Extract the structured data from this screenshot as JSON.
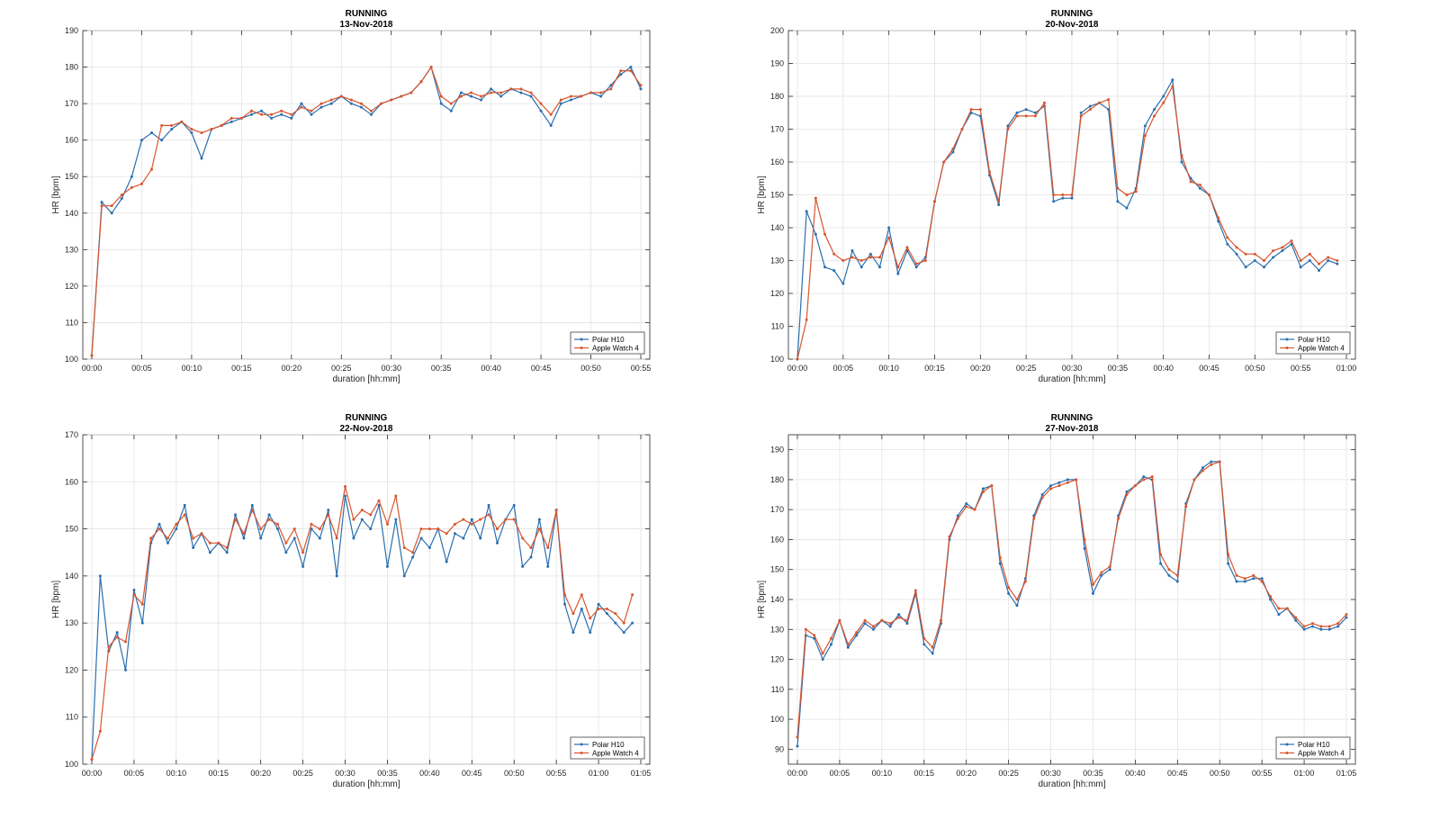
{
  "chart_data": [
    {
      "type": "line",
      "title": "RUNNING",
      "subtitle": "13-Nov-2018",
      "xlabel": "duration [hh:mm]",
      "ylabel": "HR [bpm]",
      "xlim": [
        "00:00",
        "00:55"
      ],
      "ylim": [
        100,
        190
      ],
      "x_ticks": [
        "00:00",
        "00:05",
        "00:10",
        "00:15",
        "00:20",
        "00:25",
        "00:30",
        "00:35",
        "00:40",
        "00:45",
        "00:50",
        "00:55"
      ],
      "y_ticks": [
        "100",
        "110",
        "120",
        "130",
        "140",
        "150",
        "160",
        "170",
        "180",
        "190"
      ],
      "grid": true,
      "legend_location": "bottom-right",
      "x": [
        "00:00",
        "00:01",
        "00:02",
        "00:03",
        "00:04",
        "00:05",
        "00:06",
        "00:07",
        "00:08",
        "00:09",
        "00:10",
        "00:11",
        "00:12",
        "00:13",
        "00:14",
        "00:15",
        "00:16",
        "00:17",
        "00:18",
        "00:19",
        "00:20",
        "00:21",
        "00:22",
        "00:23",
        "00:24",
        "00:25",
        "00:26",
        "00:27",
        "00:28",
        "00:29",
        "00:30",
        "00:31",
        "00:32",
        "00:33",
        "00:34",
        "00:35",
        "00:36",
        "00:37",
        "00:38",
        "00:39",
        "00:40",
        "00:41",
        "00:42",
        "00:43",
        "00:44",
        "00:45",
        "00:46",
        "00:47",
        "00:48",
        "00:49",
        "00:50",
        "00:51",
        "00:52",
        "00:53",
        "00:54",
        "00:55"
      ],
      "series": [
        {
          "name": "Polar H10",
          "color": "#2a6fb0",
          "values": [
            101,
            143,
            140,
            144,
            150,
            160,
            162,
            160,
            163,
            165,
            162,
            155,
            163,
            164,
            165,
            166,
            167,
            168,
            166,
            167,
            166,
            170,
            167,
            169,
            170,
            172,
            170,
            169,
            167,
            170,
            171,
            172,
            173,
            176,
            180,
            170,
            168,
            173,
            172,
            171,
            174,
            172,
            174,
            173,
            172,
            168,
            164,
            170,
            171,
            172,
            173,
            172,
            175,
            178,
            180,
            174
          ]
        },
        {
          "name": "Apple Watch 4",
          "color": "#d8552e",
          "values": [
            101,
            142,
            142,
            145,
            147,
            148,
            152,
            164,
            164,
            165,
            163,
            162,
            163,
            164,
            166,
            166,
            168,
            167,
            167,
            168,
            167,
            169,
            168,
            170,
            171,
            172,
            171,
            170,
            168,
            170,
            171,
            172,
            173,
            176,
            180,
            172,
            170,
            172,
            173,
            172,
            173,
            173,
            174,
            174,
            173,
            170,
            167,
            171,
            172,
            172,
            173,
            173,
            174,
            179,
            179,
            175
          ]
        }
      ]
    },
    {
      "type": "line",
      "title": "RUNNING",
      "subtitle": "20-Nov-2018",
      "xlabel": "duration [hh:mm]",
      "ylabel": "HR [bpm]",
      "xlim": [
        "00:00",
        "01:00"
      ],
      "ylim": [
        100,
        200
      ],
      "x_ticks": [
        "00:00",
        "00:05",
        "00:10",
        "00:15",
        "00:20",
        "00:25",
        "00:30",
        "00:35",
        "00:40",
        "00:45",
        "00:50",
        "00:55",
        "01:00"
      ],
      "y_ticks": [
        "100",
        "110",
        "120",
        "130",
        "140",
        "150",
        "160",
        "170",
        "180",
        "190",
        "200"
      ],
      "grid": true,
      "legend_location": "bottom-right",
      "x": [
        "00:00",
        "00:01",
        "00:02",
        "00:03",
        "00:04",
        "00:05",
        "00:06",
        "00:07",
        "00:08",
        "00:09",
        "00:10",
        "00:11",
        "00:12",
        "00:13",
        "00:14",
        "00:15",
        "00:16",
        "00:17",
        "00:18",
        "00:19",
        "00:20",
        "00:21",
        "00:22",
        "00:23",
        "00:24",
        "00:25",
        "00:26",
        "00:27",
        "00:28",
        "00:29",
        "00:30",
        "00:31",
        "00:32",
        "00:33",
        "00:34",
        "00:35",
        "00:36",
        "00:37",
        "00:38",
        "00:39",
        "00:40",
        "00:41",
        "00:42",
        "00:43",
        "00:44",
        "00:45",
        "00:46",
        "00:47",
        "00:48",
        "00:49",
        "00:50",
        "00:51",
        "00:52",
        "00:53",
        "00:54",
        "00:55",
        "00:56",
        "00:57",
        "00:58",
        "00:59"
      ],
      "series": [
        {
          "name": "Polar H10",
          "color": "#2a6fb0",
          "values": [
            100,
            145,
            138,
            128,
            127,
            123,
            133,
            128,
            132,
            128,
            140,
            126,
            133,
            128,
            131,
            148,
            160,
            163,
            170,
            175,
            174,
            156,
            147,
            171,
            175,
            176,
            175,
            177,
            148,
            149,
            149,
            175,
            177,
            178,
            176,
            148,
            146,
            152,
            171,
            176,
            180,
            185,
            160,
            155,
            152,
            150,
            142,
            135,
            132,
            128,
            130,
            128,
            131,
            133,
            135,
            128,
            130,
            127,
            130,
            129
          ]
        },
        {
          "name": "Apple Watch 4",
          "color": "#d8552e",
          "values": [
            100,
            112,
            149,
            138,
            132,
            130,
            131,
            130,
            131,
            131,
            137,
            128,
            134,
            129,
            130,
            148,
            160,
            164,
            170,
            176,
            176,
            157,
            148,
            170,
            174,
            174,
            174,
            178,
            150,
            150,
            150,
            174,
            176,
            178,
            179,
            152,
            150,
            151,
            168,
            174,
            178,
            183,
            162,
            154,
            153,
            150,
            143,
            137,
            134,
            132,
            132,
            130,
            133,
            134,
            136,
            130,
            132,
            129,
            131,
            130
          ]
        }
      ]
    },
    {
      "type": "line",
      "title": "RUNNING",
      "subtitle": "22-Nov-2018",
      "xlabel": "duration [hh:mm]",
      "ylabel": "HR [bpm]",
      "xlim": [
        "00:00",
        "01:05"
      ],
      "ylim": [
        100,
        170
      ],
      "x_ticks": [
        "00:00",
        "00:05",
        "00:10",
        "00:15",
        "00:20",
        "00:25",
        "00:30",
        "00:35",
        "00:40",
        "00:45",
        "00:50",
        "00:55",
        "01:00",
        "01:05"
      ],
      "y_ticks": [
        "100",
        "110",
        "120",
        "130",
        "140",
        "150",
        "160",
        "170"
      ],
      "grid": true,
      "legend_location": "bottom-right",
      "x": [
        "00:00",
        "00:01",
        "00:02",
        "00:03",
        "00:04",
        "00:05",
        "00:06",
        "00:07",
        "00:08",
        "00:09",
        "00:10",
        "00:11",
        "00:12",
        "00:13",
        "00:14",
        "00:15",
        "00:16",
        "00:17",
        "00:18",
        "00:19",
        "00:20",
        "00:21",
        "00:22",
        "00:23",
        "00:24",
        "00:25",
        "00:26",
        "00:27",
        "00:28",
        "00:29",
        "00:30",
        "00:31",
        "00:32",
        "00:33",
        "00:34",
        "00:35",
        "00:36",
        "00:37",
        "00:38",
        "00:39",
        "00:40",
        "00:41",
        "00:42",
        "00:43",
        "00:44",
        "00:45",
        "00:46",
        "00:47",
        "00:48",
        "00:49",
        "00:50",
        "00:51",
        "00:52",
        "00:53",
        "00:54",
        "00:55",
        "00:56",
        "00:57",
        "00:58",
        "00:59",
        "01:00",
        "01:01",
        "01:02",
        "01:03",
        "01:04"
      ],
      "series": [
        {
          "name": "Polar H10",
          "color": "#2a6fb0",
          "values": [
            101,
            140,
            124,
            128,
            120,
            137,
            130,
            147,
            151,
            147,
            150,
            155,
            146,
            149,
            145,
            147,
            145,
            153,
            148,
            155,
            148,
            153,
            150,
            145,
            148,
            142,
            150,
            148,
            154,
            140,
            157,
            148,
            152,
            150,
            155,
            142,
            152,
            140,
            144,
            148,
            146,
            150,
            143,
            149,
            148,
            152,
            148,
            155,
            147,
            152,
            155,
            142,
            144,
            152,
            142,
            154,
            134,
            128,
            133,
            128,
            134,
            132,
            130,
            128,
            130
          ]
        },
        {
          "name": "Apple Watch 4",
          "color": "#d8552e",
          "values": [
            101,
            107,
            125,
            127,
            126,
            136,
            134,
            148,
            150,
            148,
            151,
            153,
            148,
            149,
            147,
            147,
            146,
            152,
            149,
            154,
            150,
            152,
            151,
            147,
            150,
            145,
            151,
            150,
            153,
            148,
            159,
            152,
            154,
            153,
            156,
            151,
            157,
            146,
            145,
            150,
            150,
            150,
            149,
            151,
            152,
            151,
            152,
            153,
            150,
            152,
            152,
            148,
            146,
            150,
            146,
            154,
            136,
            132,
            136,
            131,
            133,
            133,
            132,
            130,
            136
          ]
        }
      ]
    },
    {
      "type": "line",
      "title": "RUNNING",
      "subtitle": "27-Nov-2018",
      "xlabel": "duration [hh:mm]",
      "ylabel": "HR [bpm]",
      "xlim": [
        "00:00",
        "01:05"
      ],
      "ylim": [
        85,
        195
      ],
      "x_ticks": [
        "00:00",
        "00:05",
        "00:10",
        "00:15",
        "00:20",
        "00:25",
        "00:30",
        "00:35",
        "00:40",
        "00:45",
        "00:50",
        "00:55",
        "01:00",
        "01:05"
      ],
      "y_ticks": [
        "90",
        "100",
        "110",
        "120",
        "130",
        "140",
        "150",
        "160",
        "170",
        "180",
        "190"
      ],
      "grid": true,
      "legend_location": "bottom-right",
      "x": [
        "00:00",
        "00:01",
        "00:02",
        "00:03",
        "00:04",
        "00:05",
        "00:06",
        "00:07",
        "00:08",
        "00:09",
        "00:10",
        "00:11",
        "00:12",
        "00:13",
        "00:14",
        "00:15",
        "00:16",
        "00:17",
        "00:18",
        "00:19",
        "00:20",
        "00:21",
        "00:22",
        "00:23",
        "00:24",
        "00:25",
        "00:26",
        "00:27",
        "00:28",
        "00:29",
        "00:30",
        "00:31",
        "00:32",
        "00:33",
        "00:34",
        "00:35",
        "00:36",
        "00:37",
        "00:38",
        "00:39",
        "00:40",
        "00:41",
        "00:42",
        "00:43",
        "00:44",
        "00:45",
        "00:46",
        "00:47",
        "00:48",
        "00:49",
        "00:50",
        "00:51",
        "00:52",
        "00:53",
        "00:54",
        "00:55",
        "00:56",
        "00:57",
        "00:58",
        "00:59",
        "01:00",
        "01:01",
        "01:02",
        "01:03",
        "01:04",
        "01:05"
      ],
      "series": [
        {
          "name": "Polar H10",
          "color": "#2a6fb0",
          "values": [
            91,
            128,
            127,
            120,
            125,
            133,
            124,
            128,
            132,
            130,
            133,
            131,
            135,
            132,
            142,
            125,
            122,
            132,
            160,
            168,
            172,
            170,
            177,
            178,
            152,
            142,
            138,
            147,
            168,
            175,
            178,
            179,
            180,
            180,
            157,
            142,
            148,
            150,
            168,
            176,
            178,
            181,
            180,
            152,
            148,
            146,
            172,
            180,
            184,
            186,
            186,
            152,
            146,
            146,
            147,
            147,
            140,
            135,
            137,
            133,
            130,
            131,
            130,
            130,
            131,
            134
          ]
        },
        {
          "name": "Apple Watch 4",
          "color": "#d8552e",
          "values": [
            94,
            130,
            128,
            122,
            127,
            133,
            125,
            129,
            133,
            131,
            133,
            132,
            134,
            133,
            143,
            127,
            124,
            133,
            161,
            167,
            171,
            170,
            176,
            178,
            154,
            144,
            140,
            146,
            167,
            174,
            177,
            178,
            179,
            180,
            160,
            145,
            149,
            151,
            167,
            175,
            178,
            180,
            181,
            155,
            150,
            148,
            171,
            180,
            183,
            185,
            186,
            155,
            148,
            147,
            148,
            146,
            141,
            137,
            137,
            134,
            131,
            132,
            131,
            131,
            132,
            135
          ]
        }
      ]
    }
  ]
}
